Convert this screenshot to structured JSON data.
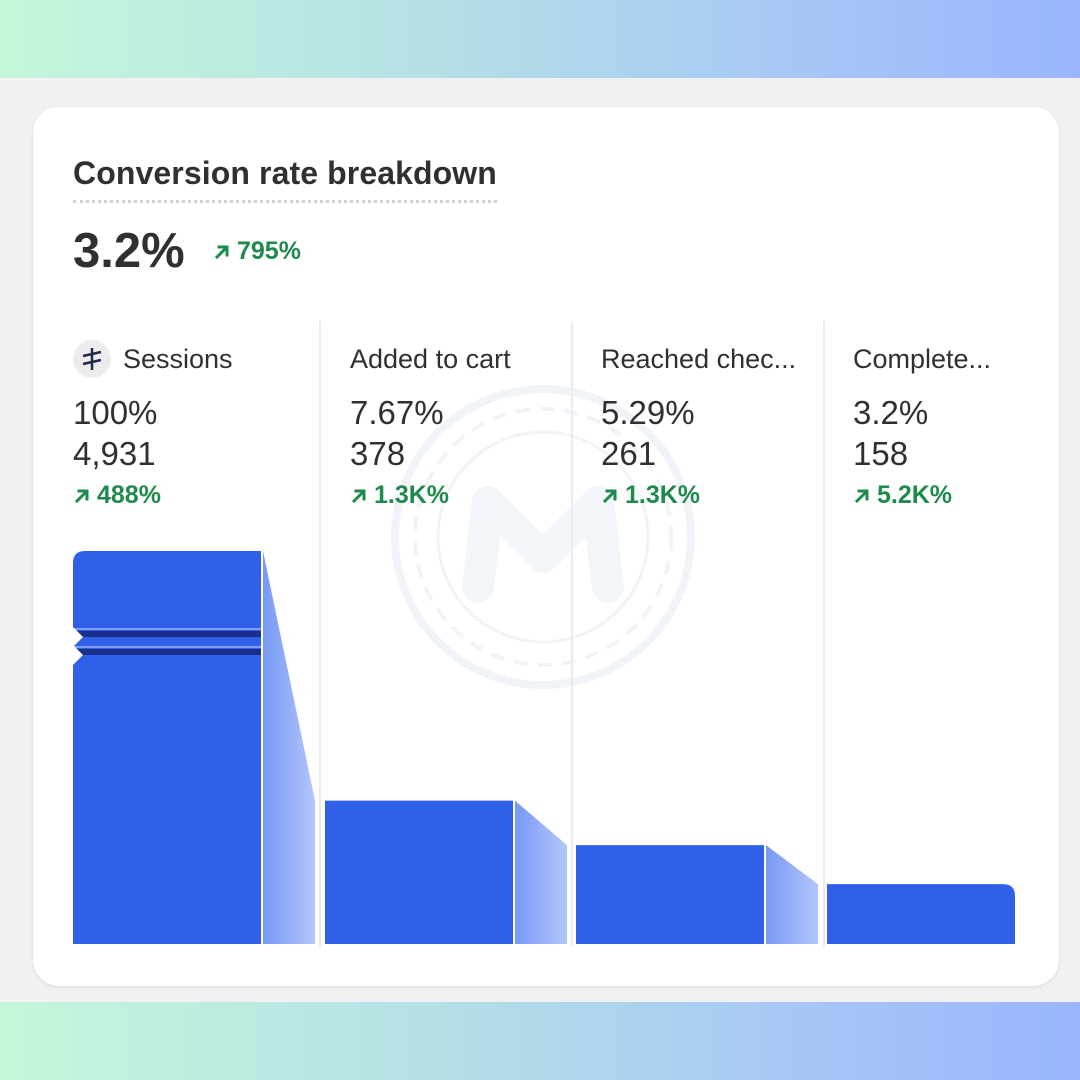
{
  "card": {
    "title": "Conversion rate breakdown",
    "conversion_rate": "3.2%",
    "conversion_change": "795%"
  },
  "stages": [
    {
      "label": "Sessions",
      "percent": "100%",
      "count": "4,931",
      "change": "488%",
      "icon": "sessions-icon"
    },
    {
      "label": "Added to cart",
      "percent": "7.67%",
      "count": "378",
      "change": "1.3K%"
    },
    {
      "label": "Reached chec...",
      "percent": "5.29%",
      "count": "261",
      "change": "1.3K%"
    },
    {
      "label": "Complete...",
      "percent": "3.2%",
      "count": "158",
      "change": "5.2K%"
    }
  ],
  "colors": {
    "bar": "#3160e8",
    "ribbon_start": "#7899f4",
    "ribbon_end": "#b3c6fb",
    "positive": "#1e8a4c",
    "bands": "#a6c6f6"
  }
}
